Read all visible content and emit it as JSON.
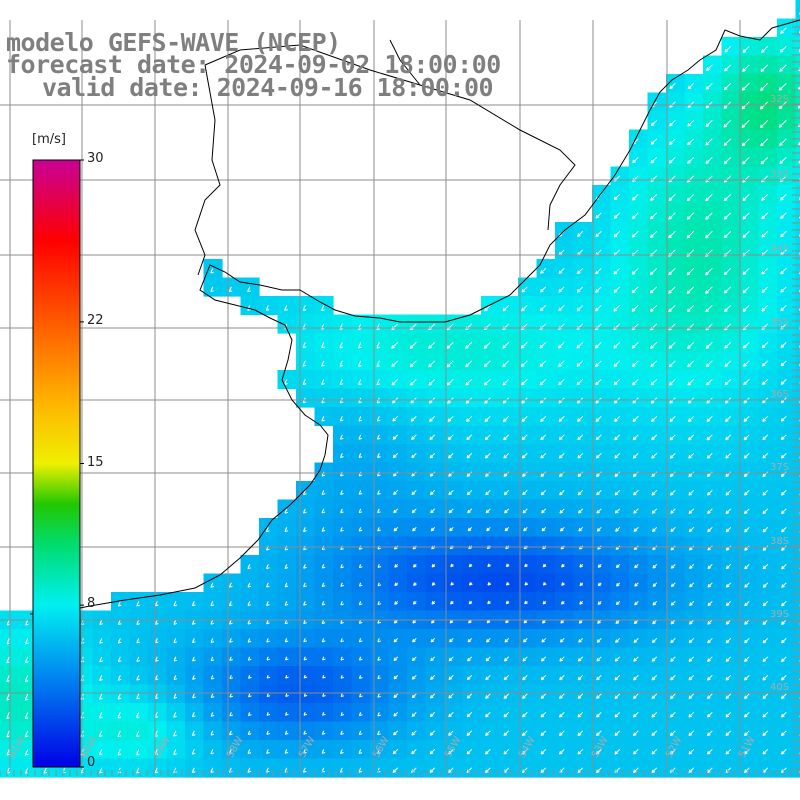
{
  "title": {
    "model": "modelo GEFS-WAVE (NCEP)",
    "forecast": "forecast date: 2024-09-02 18:00:00",
    "valid": "valid date: 2024-09-16 18:00:00"
  },
  "colorbar": {
    "unit": "[m/s]",
    "min": 0,
    "max": 30,
    "tick_labels": [
      {
        "text": "30",
        "value": 30
      },
      {
        "text": "22",
        "value": 22
      },
      {
        "text": "15",
        "value": 15
      },
      {
        "text": "8",
        "value": 8
      },
      {
        "text": "0",
        "value": 0
      }
    ],
    "stops": [
      {
        "value": 0,
        "color": "#0000e6"
      },
      {
        "value": 4,
        "color": "#0078f0"
      },
      {
        "value": 8,
        "color": "#00f0f0"
      },
      {
        "value": 11,
        "color": "#00dc6e"
      },
      {
        "value": 13,
        "color": "#22c800"
      },
      {
        "value": 15,
        "color": "#f0f000"
      },
      {
        "value": 18,
        "color": "#ffb400"
      },
      {
        "value": 22,
        "color": "#ff5a00"
      },
      {
        "value": 26,
        "color": "#ff0000"
      },
      {
        "value": 30,
        "color": "#c80096"
      }
    ]
  },
  "axes": {
    "lon_labels": [
      "61W",
      "60W",
      "59W",
      "58W",
      "57W",
      "56W",
      "55W",
      "54W",
      "53W",
      "52W",
      "51W"
    ],
    "lat_labels": [
      "32S",
      "33S",
      "34S",
      "35S",
      "36S",
      "37S",
      "38S",
      "39S",
      "40S"
    ]
  },
  "colors": {
    "land": "#ffffff",
    "coast": "#000000",
    "grid": "#8c8c8c"
  }
}
